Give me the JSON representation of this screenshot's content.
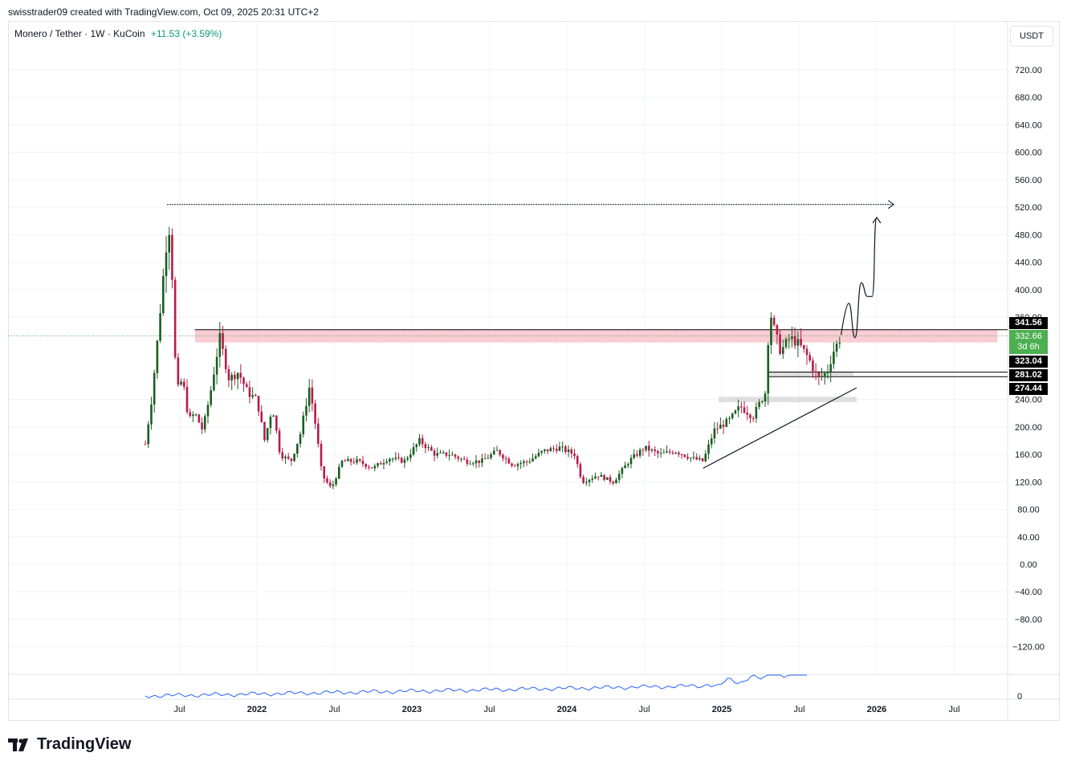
{
  "header": {
    "attribution": "swisstrader09 created with TradingView.com, Oct 09, 2025 20:31 UTC+2"
  },
  "legend": {
    "symbol": "Monero / Tether · 1W · KuCoin",
    "change": "+11.53 (+3.59%)"
  },
  "currency_button": "USDT",
  "price_labels": {
    "resistance": "341.56",
    "current_price": "332.66",
    "countdown": "3d 6h",
    "level_1": "323.04",
    "level_2": "281.02",
    "level_3": "274.44"
  },
  "brand": {
    "name": "TradingView"
  },
  "colors": {
    "up": "#089981",
    "down": "#f23645",
    "up_candle": "#1b5e20",
    "down_candle": "#b71c4a",
    "zone_red": "#f8bbc5",
    "zone_gray": "#d6d6d6",
    "volume_line": "#2962ff",
    "current_price_bg": "#4caf50"
  },
  "chart_data": {
    "type": "candlestick",
    "title": "Monero / Tether · 1W · KuCoin",
    "ylabel": "",
    "xlabel": "",
    "ylim": [
      -140,
      740
    ],
    "y_ticks": [
      720,
      680,
      640,
      600,
      560,
      520,
      480,
      440,
      400,
      360,
      240,
      200,
      160,
      120,
      80,
      40,
      0,
      -40,
      -80,
      -120
    ],
    "y_tick_labels": [
      "720.00",
      "680.00",
      "640.00",
      "600.00",
      "560.00",
      "520.00",
      "480.00",
      "440.00",
      "400.00",
      "360.00",
      "240.00",
      "200.00",
      "160.00",
      "120.00",
      "80.00",
      "40.00",
      "0.00",
      "−40.00",
      "−80.00",
      "−120.00"
    ],
    "x_ticks": [
      {
        "label": "Jul",
        "t": 2021.5,
        "bold": false
      },
      {
        "label": "2022",
        "t": 2022.0,
        "bold": true
      },
      {
        "label": "Jul",
        "t": 2022.5,
        "bold": false
      },
      {
        "label": "2023",
        "t": 2023.0,
        "bold": true
      },
      {
        "label": "Jul",
        "t": 2023.5,
        "bold": false
      },
      {
        "label": "2024",
        "t": 2024.0,
        "bold": true
      },
      {
        "label": "Jul",
        "t": 2024.5,
        "bold": false
      },
      {
        "label": "2025",
        "t": 2025.0,
        "bold": true
      },
      {
        "label": "Jul",
        "t": 2025.5,
        "bold": false
      },
      {
        "label": "2026",
        "t": 2026.0,
        "bold": true
      },
      {
        "label": "Jul",
        "t": 2026.5,
        "bold": false
      }
    ],
    "price_path": [
      [
        2021.28,
        175
      ],
      [
        2021.32,
        240
      ],
      [
        2021.36,
        330
      ],
      [
        2021.4,
        430
      ],
      [
        2021.43,
        500
      ],
      [
        2021.45,
        440
      ],
      [
        2021.48,
        250
      ],
      [
        2021.52,
        270
      ],
      [
        2021.56,
        210
      ],
      [
        2021.6,
        220
      ],
      [
        2021.65,
        195
      ],
      [
        2021.7,
        250
      ],
      [
        2021.76,
        330
      ],
      [
        2021.82,
        270
      ],
      [
        2021.88,
        280
      ],
      [
        2021.94,
        250
      ],
      [
        2022.0,
        240
      ],
      [
        2022.05,
        180
      ],
      [
        2022.1,
        230
      ],
      [
        2022.15,
        160
      ],
      [
        2022.22,
        150
      ],
      [
        2022.28,
        190
      ],
      [
        2022.34,
        260
      ],
      [
        2022.38,
        200
      ],
      [
        2022.42,
        130
      ],
      [
        2022.48,
        110
      ],
      [
        2022.55,
        150
      ],
      [
        2022.65,
        150
      ],
      [
        2022.75,
        140
      ],
      [
        2022.85,
        155
      ],
      [
        2022.95,
        150
      ],
      [
        2023.05,
        180
      ],
      [
        2023.15,
        160
      ],
      [
        2023.25,
        160
      ],
      [
        2023.35,
        150
      ],
      [
        2023.45,
        150
      ],
      [
        2023.55,
        165
      ],
      [
        2023.65,
        145
      ],
      [
        2023.75,
        150
      ],
      [
        2023.85,
        165
      ],
      [
        2023.95,
        170
      ],
      [
        2024.05,
        160
      ],
      [
        2024.1,
        120
      ],
      [
        2024.2,
        130
      ],
      [
        2024.3,
        120
      ],
      [
        2024.4,
        150
      ],
      [
        2024.5,
        170
      ],
      [
        2024.6,
        160
      ],
      [
        2024.7,
        165
      ],
      [
        2024.8,
        155
      ],
      [
        2024.88,
        150
      ],
      [
        2024.95,
        195
      ],
      [
        2025.05,
        210
      ],
      [
        2025.12,
        230
      ],
      [
        2025.2,
        215
      ],
      [
        2025.28,
        250
      ],
      [
        2025.31,
        370
      ],
      [
        2025.34,
        340
      ],
      [
        2025.38,
        310
      ],
      [
        2025.44,
        330
      ],
      [
        2025.5,
        320
      ],
      [
        2025.56,
        300
      ],
      [
        2025.62,
        270
      ],
      [
        2025.68,
        280
      ],
      [
        2025.72,
        310
      ],
      [
        2025.77,
        332
      ]
    ],
    "levels": [
      {
        "label": "341.56",
        "value": 341.56
      },
      {
        "label": "323.04",
        "value": 323.04
      },
      {
        "label": "281.02",
        "value": 281.02
      },
      {
        "label": "274.44",
        "value": 274.44
      }
    ],
    "current_price": 332.66,
    "target_level": 524,
    "zones": [
      {
        "name": "resistance",
        "from": 323.04,
        "to": 341.56,
        "t_start": 2021.6,
        "t_end": 2026.78
      },
      {
        "name": "support-upper",
        "from": 274.44,
        "to": 281.02,
        "t_start": 2025.3,
        "t_end": 2025.85
      },
      {
        "name": "support-lower",
        "from": 236,
        "to": 244,
        "t_start": 2024.98,
        "t_end": 2025.87
      }
    ],
    "trendline": [
      [
        2024.88,
        140
      ],
      [
        2025.87,
        257
      ]
    ],
    "projection_path": [
      [
        2025.77,
        334
      ],
      [
        2025.82,
        380
      ],
      [
        2025.86,
        330
      ],
      [
        2025.9,
        410
      ],
      [
        2025.94,
        390
      ],
      [
        2025.97,
        390
      ],
      [
        2026.0,
        505
      ]
    ],
    "volume_note": "0",
    "grid": true
  }
}
